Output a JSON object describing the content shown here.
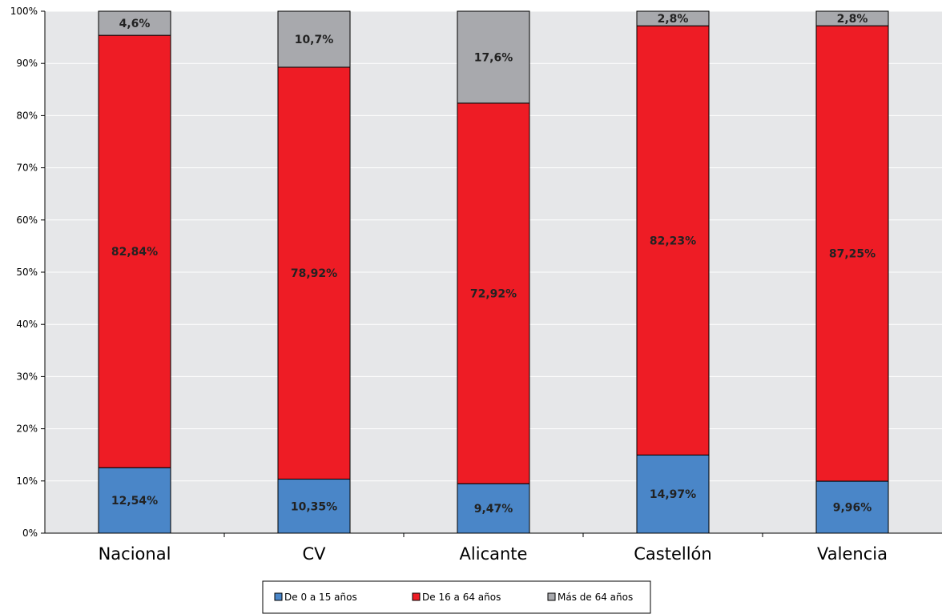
{
  "chart_data": {
    "type": "bar",
    "stacked": true,
    "categories": [
      "Nacional",
      "CV",
      "Alicante",
      "Castellón",
      "Valencia"
    ],
    "series": [
      {
        "name": "De 0 a 15 años",
        "color": "#4a86c8",
        "values": [
          12.54,
          10.35,
          9.47,
          14.97,
          9.96
        ],
        "labels": [
          "12,54%",
          "10,35%",
          "9,47%",
          "14,97%",
          "9,96%"
        ]
      },
      {
        "name": "De 16 a 64 años",
        "color": "#ee1c25",
        "values": [
          82.84,
          78.92,
          72.92,
          82.23,
          87.25
        ],
        "labels": [
          "82,84%",
          "78,92%",
          "72,92%",
          "82,23%",
          "87,25%"
        ]
      },
      {
        "name": "Más de 64 años",
        "color": "#a8a9ad",
        "values": [
          4.62,
          10.73,
          17.61,
          2.8,
          2.79
        ],
        "labels": [
          "4,6%",
          "10,7%",
          "17,6%",
          "2,8%",
          "2,8%"
        ]
      }
    ],
    "ylim": [
      0,
      100
    ],
    "yticks": [
      "0%",
      "10%",
      "20%",
      "30%",
      "40%",
      "50%",
      "60%",
      "70%",
      "80%",
      "90%",
      "100%"
    ],
    "title": "",
    "xlabel": "",
    "ylabel": "",
    "grid": true,
    "legend": "bottom",
    "background": "#e6e7e9"
  }
}
